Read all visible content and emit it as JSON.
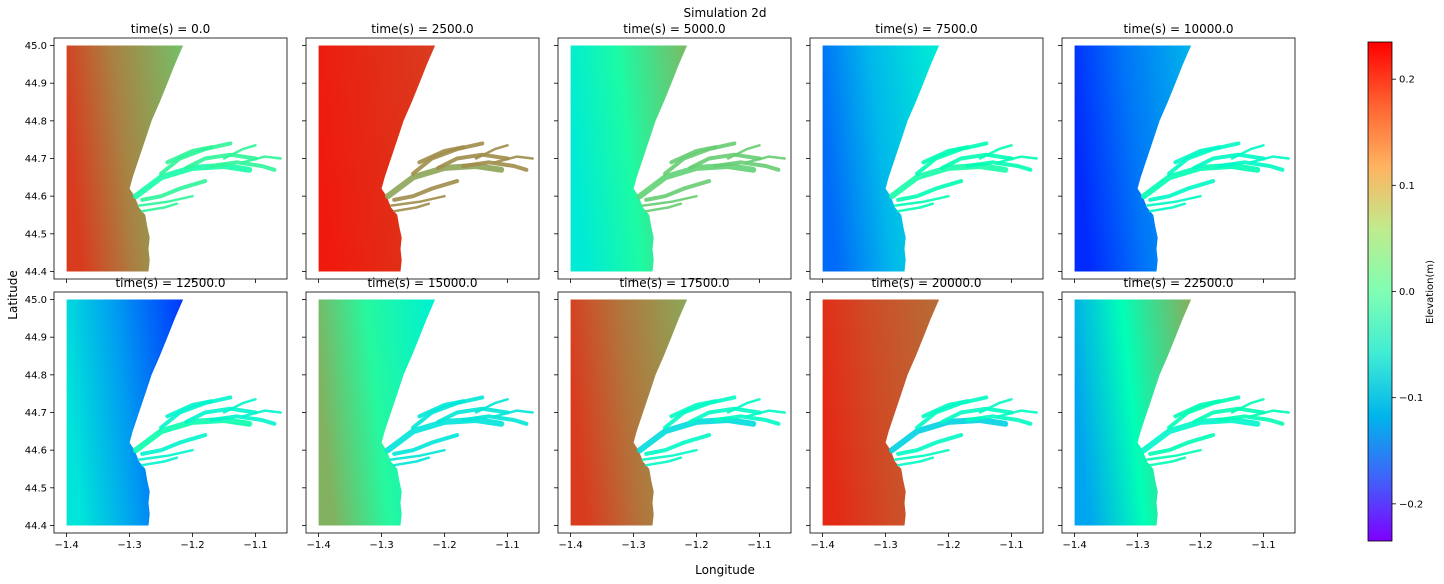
{
  "chart_data": {
    "type": "heatmap",
    "title": "Simulation 2d",
    "xlabel": "Longitude",
    "ylabel": "Latitude",
    "xlim": [
      -1.42,
      -1.05
    ],
    "ylim": [
      44.38,
      45.02
    ],
    "xticks": [
      -1.4,
      -1.3,
      -1.2,
      -1.1
    ],
    "xtick_labels": [
      "−1.4",
      "−1.3",
      "−1.2",
      "−1.1"
    ],
    "yticks": [
      44.4,
      44.5,
      44.6,
      44.7,
      44.8,
      44.9,
      45.0
    ],
    "ytick_labels": [
      "44.4",
      "44.5",
      "44.6",
      "44.7",
      "44.8",
      "44.9",
      "45.0"
    ],
    "grid": false,
    "colormap": "rainbow",
    "colorbar": {
      "label": "Elevation(m)",
      "range": [
        -0.235,
        0.235
      ],
      "ticks": [
        -0.2,
        -0.1,
        0.0,
        0.1,
        0.2
      ],
      "tick_labels": [
        "−0.2",
        "−0.1",
        "0.0",
        "0.1",
        "0.2"
      ]
    },
    "panels": [
      {
        "title": "time(s) = 0.0",
        "west": 0.2,
        "coast": 0.11,
        "estuary": 0.02
      },
      {
        "title": "time(s) = 2500.0",
        "west": 0.22,
        "coast": 0.2,
        "estuary": 0.13
      },
      {
        "title": "time(s) = 5000.0",
        "west": -0.06,
        "coast": 0.11,
        "estuary": 0.09
      },
      {
        "title": "time(s) = 7500.0",
        "west": -0.17,
        "coast": -0.06,
        "estuary": 0.02
      },
      {
        "title": "time(s) = 10000.0",
        "west": -0.21,
        "coast": -0.12,
        "estuary": 0.0
      },
      {
        "title": "time(s) = 12500.0",
        "west": -0.07,
        "coast": -0.2,
        "estuary": 0.01
      },
      {
        "title": "time(s) = 15000.0",
        "west": 0.12,
        "coast": -0.05,
        "estuary": -0.07
      },
      {
        "title": "time(s) = 17500.0",
        "west": 0.2,
        "coast": 0.13,
        "estuary": -0.08
      },
      {
        "title": "time(s) = 20000.0",
        "west": 0.21,
        "coast": 0.17,
        "estuary": -0.09
      },
      {
        "title": "time(s) = 22500.0",
        "west": -0.13,
        "coast": 0.12,
        "estuary": -0.04
      }
    ]
  }
}
